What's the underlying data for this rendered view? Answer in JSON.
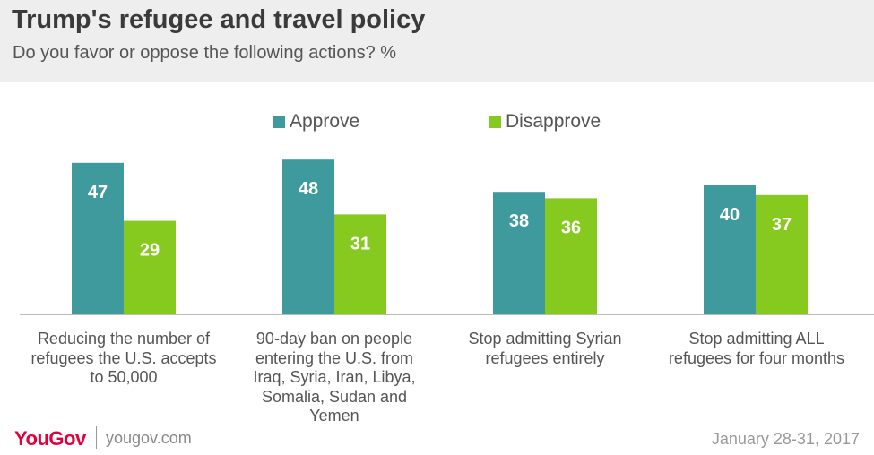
{
  "header": {
    "title": "Trump's refugee and travel policy",
    "subtitle": "Do you favor or oppose the following actions? %"
  },
  "chart_data": {
    "type": "bar",
    "categories": [
      "Reducing the number of refugees the U.S. accepts to 50,000",
      "90-day ban on people entering the U.S. from Iraq, Syria, Iran, Libya, Somalia, Sudan and Yemen",
      "Stop admitting Syrian refugees entirely",
      "Stop admitting ALL refugees for four months"
    ],
    "series": [
      {
        "name": "Approve",
        "color": "#3f9a9e",
        "values": [
          47,
          48,
          38,
          40
        ]
      },
      {
        "name": "Disapprove",
        "color": "#86c91f",
        "values": [
          29,
          31,
          36,
          37
        ]
      }
    ],
    "legend_position": "top",
    "ylim": [
      0,
      50
    ],
    "grid": false
  },
  "footer": {
    "brand": "YouGov",
    "site": "yougov.com",
    "date": "January 28-31, 2017"
  }
}
